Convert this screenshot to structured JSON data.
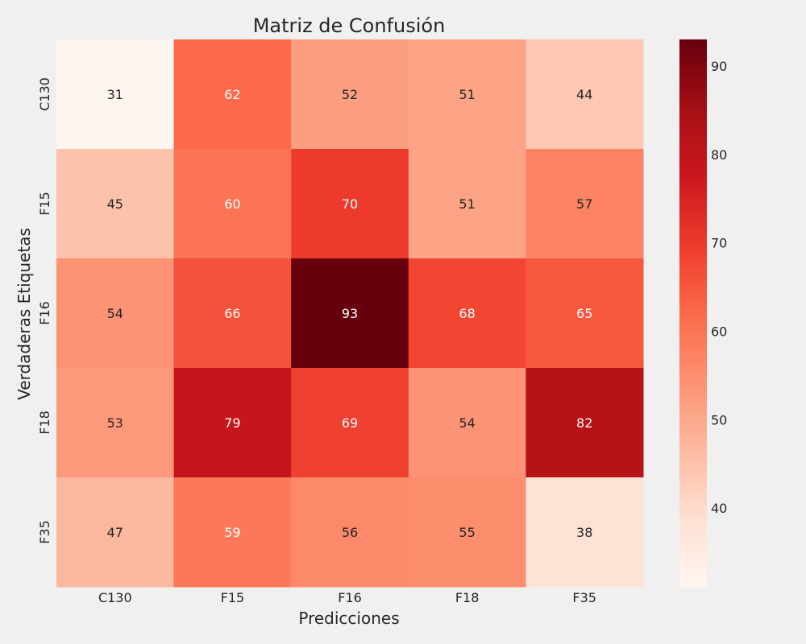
{
  "chart_data": {
    "type": "heatmap",
    "title": "Matriz de Confusión",
    "xlabel": "Predicciones",
    "ylabel": "Verdaderas Etiquetas",
    "x_categories": [
      "C130",
      "F15",
      "F16",
      "F18",
      "F35"
    ],
    "y_categories": [
      "C130",
      "F15",
      "F16",
      "F18",
      "F35"
    ],
    "values": [
      [
        31,
        62,
        52,
        51,
        44
      ],
      [
        45,
        60,
        70,
        51,
        57
      ],
      [
        54,
        66,
        93,
        68,
        65
      ],
      [
        53,
        79,
        69,
        54,
        82
      ],
      [
        47,
        59,
        56,
        55,
        38
      ]
    ],
    "colormap": "Reds",
    "color_min": 31,
    "color_max": 93,
    "colorbar_ticks": [
      40,
      50,
      60,
      70,
      80,
      90
    ],
    "grid": false
  },
  "colors": {
    "background": "#f0f0f0",
    "text_dark": "#262626",
    "text_light": "#ffffff"
  }
}
